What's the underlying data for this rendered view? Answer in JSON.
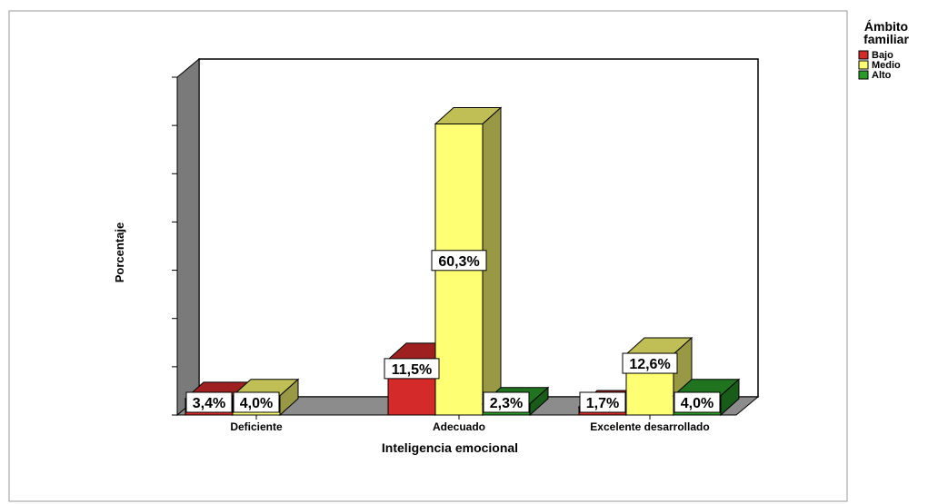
{
  "chart_data": {
    "type": "bar",
    "title": "",
    "xlabel": "Inteligencia emocional",
    "ylabel": "Porcentaje",
    "categories": [
      "Deficiente",
      "Adecuado",
      "Excelente desarrollado"
    ],
    "series": [
      {
        "name": "Bajo",
        "color": "#d42a2a",
        "values": [
          3.4,
          11.5,
          1.7
        ]
      },
      {
        "name": "Medio",
        "color": "#ffff73",
        "values": [
          4.0,
          60.3,
          12.6
        ]
      },
      {
        "name": "Alto",
        "color": "#2a9a2a",
        "values": [
          null,
          2.3,
          4.0
        ]
      }
    ],
    "data_labels": [
      [
        "3,4%",
        "11,5%",
        "1,7%"
      ],
      [
        "4,0%",
        "60,3%",
        "12,6%"
      ],
      [
        "",
        "2,3%",
        "4,0%"
      ]
    ],
    "ylim": [
      0,
      70
    ],
    "grid": false,
    "legend": {
      "title_line1": "Ámbito",
      "title_line2": "familiar",
      "placement": "top-right"
    }
  }
}
